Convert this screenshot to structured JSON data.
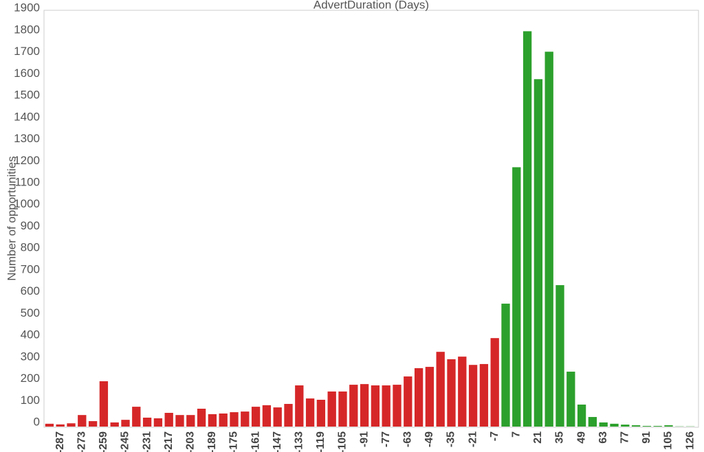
{
  "chart_data": {
    "type": "bar",
    "title": "AdvertDuration (Days)",
    "y_label": "Number of opportunities",
    "categories": [
      null,
      -287,
      null,
      -273,
      null,
      -259,
      null,
      -245,
      null,
      -231,
      null,
      -217,
      null,
      -203,
      null,
      -189,
      null,
      -175,
      null,
      -161,
      null,
      -147,
      null,
      -133,
      null,
      -119,
      null,
      -105,
      null,
      -91,
      null,
      -77,
      null,
      -63,
      null,
      -49,
      null,
      -35,
      null,
      -21,
      null,
      -7,
      null,
      7,
      null,
      21,
      null,
      35,
      null,
      49,
      null,
      63,
      null,
      77,
      null,
      91,
      null,
      105,
      null,
      126
    ],
    "values": [
      13,
      10,
      15,
      53,
      25,
      208,
      19,
      31,
      91,
      41,
      38,
      63,
      53,
      53,
      82,
      57,
      60,
      66,
      69,
      91,
      98,
      88,
      104,
      189,
      129,
      123,
      161,
      161,
      192,
      195,
      189,
      189,
      192,
      230,
      268,
      274,
      343,
      309,
      321,
      283,
      287,
      406,
      564,
      1190,
      1814,
      1594,
      1720,
      649,
      252,
      101,
      44,
      19,
      13,
      9,
      6,
      3,
      3,
      6,
      1,
      1
    ],
    "colors": [
      "#d62728",
      "#2ca02c"
    ],
    "color_switch_index": 42,
    "ylim": [
      0,
      1910
    ],
    "yticks": [
      0,
      100,
      200,
      300,
      400,
      500,
      600,
      700,
      800,
      900,
      1000,
      1100,
      1200,
      1300,
      1400,
      1500,
      1600,
      1700,
      1800,
      1900
    ],
    "grid": false
  }
}
